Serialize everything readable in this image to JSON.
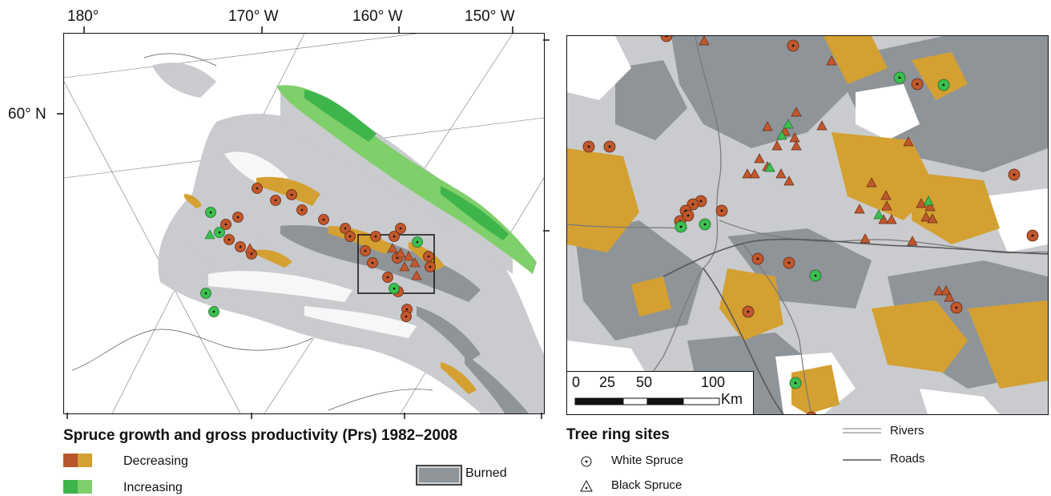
{
  "left_map": {
    "lon_labels": [
      "180°",
      "170° W",
      "160° W",
      "150° W"
    ],
    "lat_label": "60° N"
  },
  "right_map": {
    "scale_bar": {
      "ticks": [
        "0",
        "25",
        "50",
        "100"
      ],
      "unit": "Km"
    }
  },
  "legend": {
    "title": "Spruce growth and gross productivity (Prs) 1982–2008",
    "decreasing_label": "Decreasing",
    "increasing_label": "Increasing",
    "burned_label": "Burned",
    "sites_title": "Tree ring sites",
    "white_spruce_label": "White Spruce",
    "black_spruce_label": "Black Spruce",
    "rivers_label": "Rivers",
    "roads_label": "Roads"
  },
  "colors": {
    "decreasing_dark": "#b5562b",
    "decreasing_light": "#d4a032",
    "increasing_dark": "#3db54a",
    "increasing_light": "#7fcf6a",
    "burned": "#8f9499",
    "forest_gray": "#c9cbce",
    "marker_brown": "#c2572d",
    "marker_green": "#3cbf4f"
  }
}
